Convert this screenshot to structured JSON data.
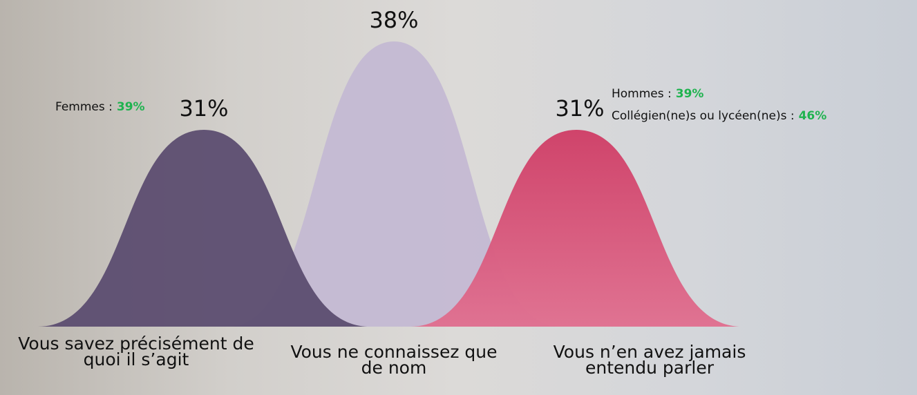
{
  "chart_data": {
    "type": "bell",
    "categories": [
      "Vous savez précisément de quoi il s’agit",
      "Vous ne connaissez que de nom",
      "Vous n’en avez jamais entendu parler"
    ],
    "values": [
      31,
      38,
      31
    ],
    "value_labels": [
      "31%",
      "38%",
      "31%"
    ],
    "colors": [
      "#5e4f72",
      "#c3b9d3",
      "#d2446d"
    ],
    "annotations": [
      {
        "label": "Femmes :",
        "highlight": "39%"
      },
      {
        "label": "Hommes :",
        "highlight": "39%"
      },
      {
        "label": "Collégien(ne)s ou lycéen(ne)s :",
        "highlight": "46%"
      }
    ]
  }
}
